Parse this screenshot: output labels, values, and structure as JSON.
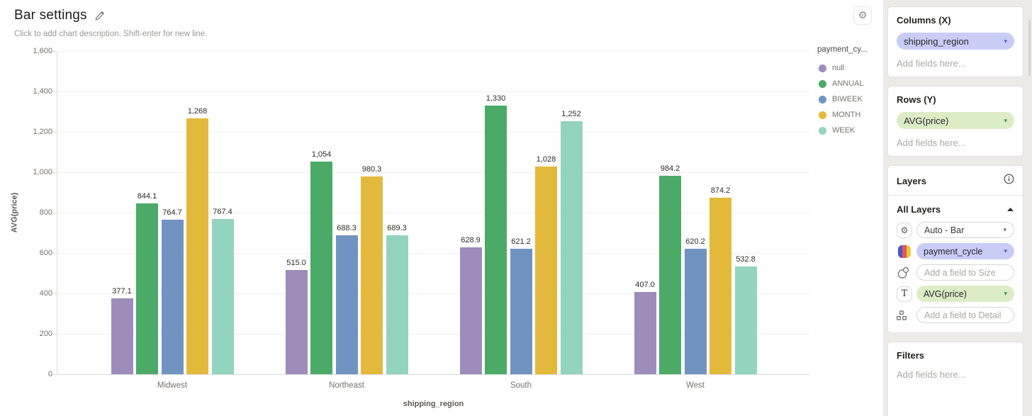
{
  "header": {
    "title": "Bar settings",
    "description_placeholder": "Click to add chart description. Shift-enter for new line."
  },
  "icons": {
    "settings": "gear",
    "edit": "pencil",
    "info": "info-circle",
    "collapse": "caret-up",
    "dropdown": "caret-down",
    "color": "palette-stripes",
    "size": "overlapping-circles",
    "text": "T-letter",
    "detail": "org-squares"
  },
  "chart_data": {
    "type": "bar",
    "title": "",
    "xlabel": "shipping_region",
    "ylabel": "AVG(price)",
    "ylim": [
      0,
      1600
    ],
    "ytick_step": 200,
    "ytick_labels": [
      "0",
      "200",
      "400",
      "600",
      "800",
      "1,000",
      "1,200",
      "1,400",
      "1,600"
    ],
    "grid": true,
    "legend_title": "payment_cy...",
    "legend_position": "right",
    "categories": [
      "Midwest",
      "Northeast",
      "South",
      "West"
    ],
    "series": [
      {
        "name": "null",
        "color": "#9e8cbb",
        "values": [
          377.1,
          515.0,
          628.9,
          407.0
        ],
        "labels": [
          "377.1",
          "515.0",
          "628.9",
          "407.0"
        ]
      },
      {
        "name": "ANNUAL",
        "color": "#4caa67",
        "values": [
          844.1,
          1054,
          1330,
          984.2
        ],
        "labels": [
          "844.1",
          "1,054",
          "1,330",
          "984.2"
        ]
      },
      {
        "name": "BIWEEK",
        "color": "#7193c1",
        "values": [
          764.7,
          688.3,
          621.2,
          620.2
        ],
        "labels": [
          "764.7",
          "688.3",
          "621.2",
          "620.2"
        ]
      },
      {
        "name": "MONTH",
        "color": "#e3b93b",
        "values": [
          1268,
          980.3,
          1028,
          874.2
        ],
        "labels": [
          "1,268",
          "980.3",
          "1,028",
          "874.2"
        ]
      },
      {
        "name": "WEEK",
        "color": "#93d4bf",
        "values": [
          767.4,
          689.3,
          1252,
          532.8
        ],
        "labels": [
          "767.4",
          "689.3",
          "1,252",
          "532.8"
        ]
      }
    ]
  },
  "sidebar": {
    "columns": {
      "title": "Columns (X)",
      "fields": [
        {
          "label": "shipping_region"
        }
      ],
      "placeholder": "Add fields here..."
    },
    "rows": {
      "title": "Rows (Y)",
      "fields": [
        {
          "label": "AVG(price)"
        }
      ],
      "placeholder": "Add fields here..."
    },
    "layers": {
      "title": "Layers",
      "group_title": "All Layers",
      "mark_type": "Auto - Bar",
      "color_field": "payment_cycle",
      "size_placeholder": "Add a field to Size",
      "text_field": "AVG(price)",
      "detail_placeholder": "Add a field to Detail"
    },
    "filters": {
      "title": "Filters",
      "placeholder": "Add fields here..."
    }
  },
  "colors": {
    "accent_lavender": "#c9cdf6",
    "accent_green": "#dcedc6",
    "sidebar_bg": "#ecebe8",
    "gridline": "#f1f0ee",
    "axis": "#dcdbd9"
  }
}
